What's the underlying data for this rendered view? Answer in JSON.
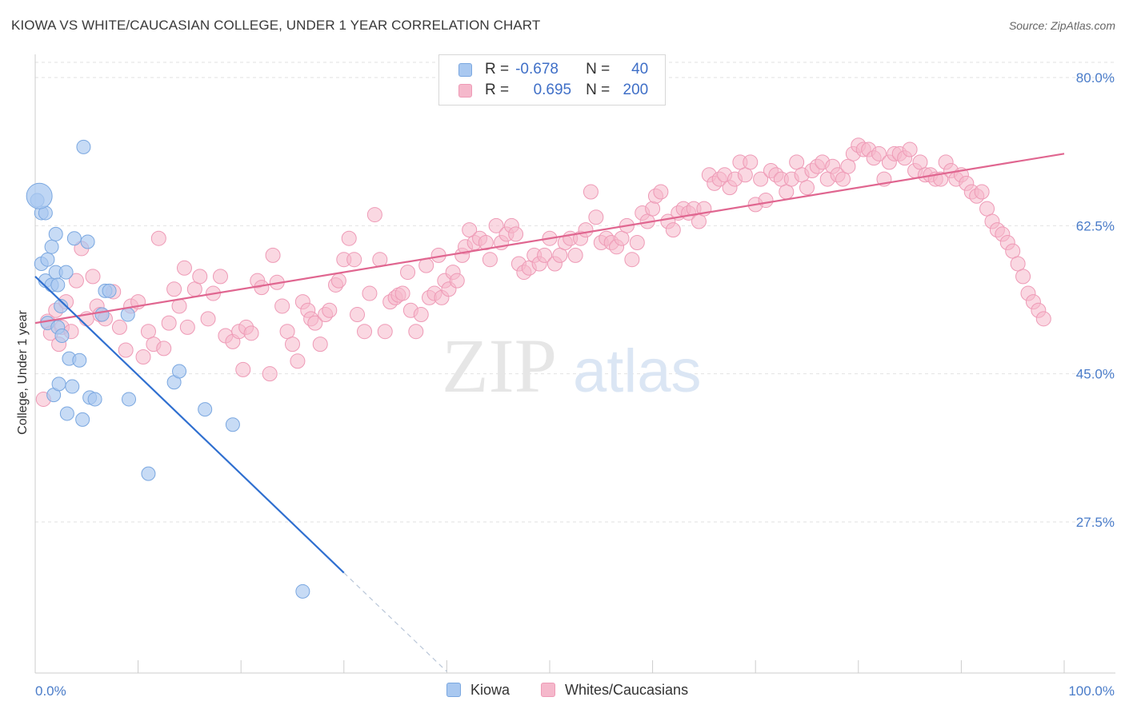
{
  "title": "KIOWA VS WHITE/CAUCASIAN COLLEGE, UNDER 1 YEAR CORRELATION CHART",
  "source": "Source: ZipAtlas.com",
  "watermark": {
    "zip": "ZIP",
    "atlas": "atlas"
  },
  "colors": {
    "kiowa_fill": "#a9c8f0",
    "kiowa_stroke": "#7aa7e0",
    "kiowa_line": "#2f6fd0",
    "white_fill": "#f5b8cb",
    "white_stroke": "#ee9ab6",
    "white_line": "#e06690",
    "axis_text": "#4a7cc9",
    "grid": "#e2e2e2"
  },
  "legend": {
    "kiowa": {
      "r_label": "R =",
      "r_value": "-0.678",
      "n_label": "N =",
      "n_value": "40"
    },
    "white": {
      "r_label": "R =",
      "r_value": "0.695",
      "n_label": "N =",
      "n_value": "200"
    }
  },
  "bottom_legend": {
    "kiowa": "Kiowa",
    "white": "Whites/Caucasians"
  },
  "chart_data": {
    "type": "scatter",
    "title": "KIOWA VS WHITE/CAUCASIAN COLLEGE, UNDER 1 YEAR CORRELATION CHART",
    "xlabel": "",
    "ylabel": "College, Under 1 year",
    "xlim": [
      0,
      100
    ],
    "ylim": [
      10,
      85
    ],
    "x_tick_labels": [
      "0.0%",
      "100.0%"
    ],
    "y_ticks": [
      27.5,
      45.0,
      62.5,
      80.0
    ],
    "y_tick_labels": [
      "27.5%",
      "45.0%",
      "62.5%",
      "80.0%"
    ],
    "grid": true,
    "series": [
      {
        "name": "Kiowa",
        "r": -0.678,
        "n": 40,
        "trend": {
          "x0": 0,
          "y0": 56.5,
          "x1": 30,
          "y1": 21.5,
          "dash_to_x": 40
        },
        "points": [
          [
            0.2,
            65.5
          ],
          [
            0.6,
            64.0
          ],
          [
            0.6,
            58.0
          ],
          [
            1.0,
            56.0
          ],
          [
            1.2,
            58.5
          ],
          [
            1.2,
            51.0
          ],
          [
            1.6,
            55.5
          ],
          [
            1.6,
            60.0
          ],
          [
            1.8,
            42.5
          ],
          [
            2.0,
            57.0
          ],
          [
            2.0,
            61.5
          ],
          [
            2.2,
            55.5
          ],
          [
            2.2,
            50.5
          ],
          [
            2.3,
            43.8
          ],
          [
            2.5,
            53.0
          ],
          [
            2.6,
            49.5
          ],
          [
            3.0,
            57.0
          ],
          [
            3.1,
            40.3
          ],
          [
            3.3,
            46.8
          ],
          [
            3.6,
            43.5
          ],
          [
            3.8,
            61.0
          ],
          [
            4.3,
            46.6
          ],
          [
            4.6,
            39.6
          ],
          [
            4.7,
            71.8
          ],
          [
            5.1,
            60.6
          ],
          [
            5.3,
            42.2
          ],
          [
            5.8,
            42.0
          ],
          [
            6.5,
            52.0
          ],
          [
            6.8,
            54.8
          ],
          [
            7.2,
            54.8
          ],
          [
            9.0,
            52.0
          ],
          [
            9.1,
            42.0
          ],
          [
            11.0,
            33.2
          ],
          [
            13.5,
            44.0
          ],
          [
            14.0,
            45.3
          ],
          [
            16.5,
            40.8
          ],
          [
            19.2,
            39.0
          ],
          [
            26.0,
            19.3
          ],
          [
            1.0,
            64.0
          ],
          [
            0.4,
            66.0
          ]
        ]
      },
      {
        "name": "Whites/Caucasians",
        "r": 0.695,
        "n": 200,
        "trend": {
          "x0": 0,
          "y0": 51.0,
          "x1": 100,
          "y1": 71.0
        },
        "points": [
          [
            0.8,
            42.0
          ],
          [
            1.2,
            51.2
          ],
          [
            1.5,
            49.8
          ],
          [
            2.0,
            52.5
          ],
          [
            2.3,
            48.5
          ],
          [
            2.6,
            50.5
          ],
          [
            3.0,
            53.5
          ],
          [
            3.5,
            50.0
          ],
          [
            4.0,
            56.0
          ],
          [
            4.5,
            59.8
          ],
          [
            5.0,
            51.5
          ],
          [
            5.6,
            56.5
          ],
          [
            6.0,
            53.0
          ],
          [
            6.3,
            52.0
          ],
          [
            6.8,
            51.5
          ],
          [
            7.6,
            54.7
          ],
          [
            8.2,
            50.5
          ],
          [
            8.8,
            47.8
          ],
          [
            9.3,
            53.0
          ],
          [
            10.0,
            53.5
          ],
          [
            10.5,
            47.0
          ],
          [
            11.0,
            50.0
          ],
          [
            11.5,
            48.5
          ],
          [
            12.0,
            61.0
          ],
          [
            12.5,
            48.0
          ],
          [
            13.0,
            51.0
          ],
          [
            13.5,
            55.0
          ],
          [
            14.0,
            53.0
          ],
          [
            14.5,
            57.5
          ],
          [
            14.8,
            50.5
          ],
          [
            15.5,
            55.0
          ],
          [
            16.0,
            56.5
          ],
          [
            16.8,
            51.5
          ],
          [
            17.3,
            54.5
          ],
          [
            18.0,
            56.5
          ],
          [
            18.5,
            49.5
          ],
          [
            19.2,
            48.8
          ],
          [
            19.8,
            50.0
          ],
          [
            20.2,
            45.5
          ],
          [
            20.5,
            50.5
          ],
          [
            21.0,
            49.8
          ],
          [
            21.6,
            56.0
          ],
          [
            22.0,
            55.2
          ],
          [
            22.8,
            45.0
          ],
          [
            23.1,
            59.0
          ],
          [
            23.5,
            55.8
          ],
          [
            24.0,
            53.0
          ],
          [
            24.5,
            50.0
          ],
          [
            25.0,
            48.5
          ],
          [
            25.5,
            46.5
          ],
          [
            26.0,
            53.5
          ],
          [
            26.5,
            52.5
          ],
          [
            26.8,
            51.5
          ],
          [
            27.2,
            51.0
          ],
          [
            27.7,
            48.5
          ],
          [
            28.2,
            52.0
          ],
          [
            28.6,
            52.5
          ],
          [
            29.2,
            55.5
          ],
          [
            29.5,
            56.0
          ],
          [
            30.0,
            58.5
          ],
          [
            30.5,
            61.0
          ],
          [
            31.0,
            58.5
          ],
          [
            31.3,
            52.0
          ],
          [
            32.0,
            50.0
          ],
          [
            32.5,
            54.5
          ],
          [
            33.0,
            63.8
          ],
          [
            33.5,
            58.5
          ],
          [
            34.0,
            50.0
          ],
          [
            34.5,
            53.5
          ],
          [
            35.0,
            54.0
          ],
          [
            35.3,
            54.3
          ],
          [
            35.7,
            54.5
          ],
          [
            36.2,
            57.0
          ],
          [
            36.5,
            52.5
          ],
          [
            37.0,
            50.0
          ],
          [
            37.5,
            52.0
          ],
          [
            38.0,
            57.8
          ],
          [
            38.3,
            54.0
          ],
          [
            38.8,
            54.5
          ],
          [
            39.2,
            59.0
          ],
          [
            39.5,
            54.0
          ],
          [
            39.8,
            56.0
          ],
          [
            40.2,
            55.0
          ],
          [
            40.6,
            57.0
          ],
          [
            41.0,
            56.0
          ],
          [
            41.5,
            59.0
          ],
          [
            41.8,
            60.0
          ],
          [
            42.2,
            62.0
          ],
          [
            42.7,
            60.5
          ],
          [
            43.2,
            61.0
          ],
          [
            43.8,
            60.5
          ],
          [
            44.2,
            58.5
          ],
          [
            44.8,
            62.5
          ],
          [
            45.3,
            60.5
          ],
          [
            45.8,
            61.5
          ],
          [
            46.3,
            62.5
          ],
          [
            46.7,
            61.5
          ],
          [
            47.0,
            58.0
          ],
          [
            47.5,
            57.0
          ],
          [
            48.0,
            57.5
          ],
          [
            48.5,
            59.0
          ],
          [
            49.0,
            58.0
          ],
          [
            49.5,
            59.0
          ],
          [
            50.0,
            61.0
          ],
          [
            50.5,
            58.0
          ],
          [
            51.0,
            59.0
          ],
          [
            51.5,
            60.5
          ],
          [
            52.0,
            61.0
          ],
          [
            52.5,
            59.0
          ],
          [
            53.0,
            61.0
          ],
          [
            53.5,
            62.0
          ],
          [
            54.0,
            66.5
          ],
          [
            54.5,
            63.5
          ],
          [
            55.0,
            60.5
          ],
          [
            55.5,
            61.0
          ],
          [
            56.0,
            60.5
          ],
          [
            56.5,
            60.0
          ],
          [
            57.0,
            61.0
          ],
          [
            57.5,
            62.5
          ],
          [
            58.0,
            58.5
          ],
          [
            58.5,
            60.5
          ],
          [
            59.0,
            64.0
          ],
          [
            59.5,
            63.0
          ],
          [
            60.0,
            64.5
          ],
          [
            60.3,
            66.0
          ],
          [
            60.8,
            66.5
          ],
          [
            61.5,
            63.0
          ],
          [
            62.0,
            62.0
          ],
          [
            62.5,
            64.0
          ],
          [
            63.0,
            64.5
          ],
          [
            63.5,
            64.0
          ],
          [
            64.0,
            64.5
          ],
          [
            64.5,
            63.0
          ],
          [
            65.0,
            64.5
          ],
          [
            65.5,
            68.5
          ],
          [
            66.0,
            67.5
          ],
          [
            66.5,
            68.0
          ],
          [
            67.0,
            68.5
          ],
          [
            67.5,
            67.0
          ],
          [
            68.0,
            68.0
          ],
          [
            68.5,
            70.0
          ],
          [
            69.0,
            68.5
          ],
          [
            69.5,
            70.0
          ],
          [
            70.0,
            65.0
          ],
          [
            70.5,
            68.0
          ],
          [
            71.0,
            65.5
          ],
          [
            71.5,
            69.0
          ],
          [
            72.0,
            68.5
          ],
          [
            72.5,
            68.0
          ],
          [
            73.0,
            66.5
          ],
          [
            73.5,
            68.0
          ],
          [
            74.0,
            70.0
          ],
          [
            74.5,
            68.5
          ],
          [
            75.0,
            67.0
          ],
          [
            75.5,
            69.0
          ],
          [
            76.0,
            69.5
          ],
          [
            76.5,
            70.0
          ],
          [
            77.0,
            68.0
          ],
          [
            77.5,
            69.5
          ],
          [
            78.0,
            68.5
          ],
          [
            78.5,
            68.0
          ],
          [
            79.0,
            69.5
          ],
          [
            79.5,
            71.0
          ],
          [
            80.0,
            72.0
          ],
          [
            80.5,
            71.5
          ],
          [
            81.0,
            71.5
          ],
          [
            81.5,
            70.5
          ],
          [
            82.0,
            71.0
          ],
          [
            82.5,
            68.0
          ],
          [
            83.0,
            70.0
          ],
          [
            83.5,
            71.0
          ],
          [
            84.0,
            71.0
          ],
          [
            84.5,
            70.5
          ],
          [
            85.0,
            71.5
          ],
          [
            85.5,
            69.0
          ],
          [
            86.0,
            70.0
          ],
          [
            86.5,
            68.5
          ],
          [
            87.0,
            68.5
          ],
          [
            87.5,
            68.0
          ],
          [
            88.0,
            68.0
          ],
          [
            88.5,
            70.0
          ],
          [
            89.0,
            69.0
          ],
          [
            89.5,
            68.0
          ],
          [
            90.0,
            68.5
          ],
          [
            90.5,
            67.5
          ],
          [
            91.0,
            66.5
          ],
          [
            91.5,
            66.0
          ],
          [
            92.0,
            66.5
          ],
          [
            92.5,
            64.5
          ],
          [
            93.0,
            63.0
          ],
          [
            93.5,
            62.0
          ],
          [
            94.0,
            61.5
          ],
          [
            94.5,
            60.5
          ],
          [
            95.0,
            59.5
          ],
          [
            95.5,
            58.0
          ],
          [
            96.0,
            56.5
          ],
          [
            96.5,
            54.5
          ],
          [
            97.0,
            53.5
          ],
          [
            97.5,
            52.5
          ],
          [
            98.0,
            51.5
          ]
        ]
      }
    ]
  }
}
